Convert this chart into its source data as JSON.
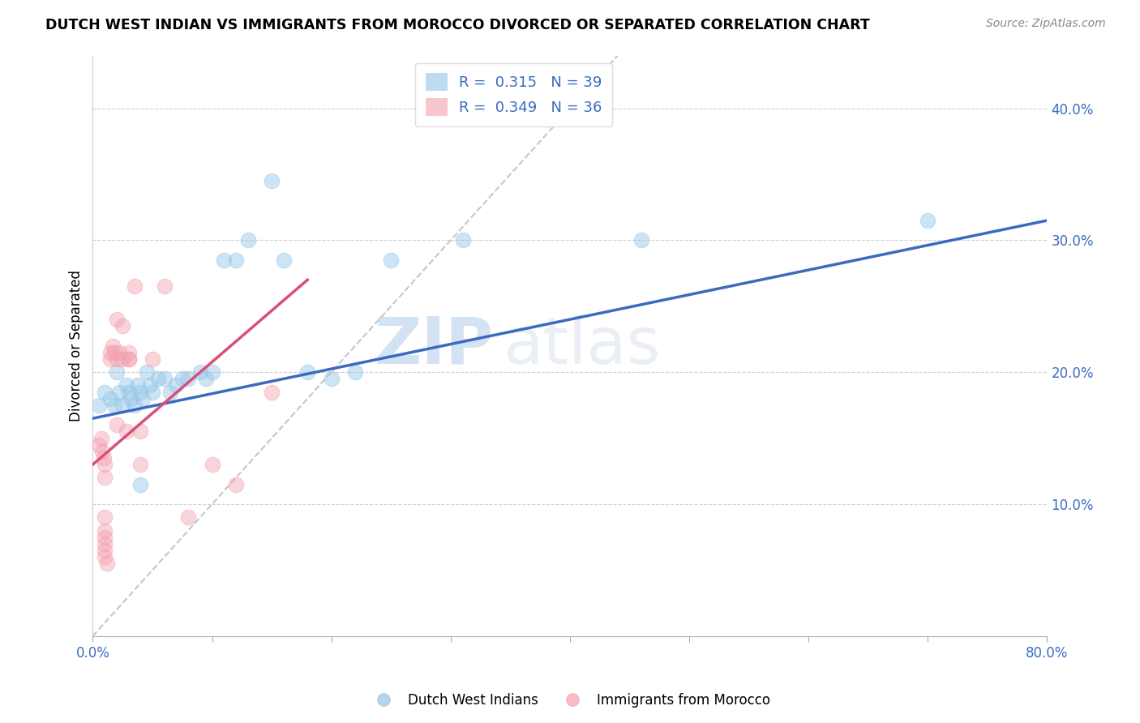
{
  "title": "DUTCH WEST INDIAN VS IMMIGRANTS FROM MOROCCO DIVORCED OR SEPARATED CORRELATION CHART",
  "source": "Source: ZipAtlas.com",
  "ylabel": "Divorced or Separated",
  "xlim": [
    0.0,
    0.8
  ],
  "ylim": [
    0.0,
    0.44
  ],
  "xtick_vals": [
    0.0,
    0.1,
    0.2,
    0.3,
    0.4,
    0.5,
    0.6,
    0.7,
    0.8
  ],
  "xtick_labels": [
    "0.0%",
    "",
    "",
    "",
    "",
    "",
    "",
    "",
    "80.0%"
  ],
  "ytick_vals": [
    0.1,
    0.2,
    0.3,
    0.4
  ],
  "ytick_labels": [
    "10.0%",
    "20.0%",
    "30.0%",
    "40.0%"
  ],
  "legend1_R": "0.315",
  "legend1_N": "39",
  "legend2_R": "0.349",
  "legend2_N": "36",
  "blue_color": "#92c5e8",
  "pink_color": "#f4a0b0",
  "trendline_blue": "#3a6bbf",
  "trendline_pink": "#d94f7a",
  "trendline_gray": "#c0c0c0",
  "watermark_zip": "ZIP",
  "watermark_atlas": "atlas",
  "blue_scatter_x": [
    0.005,
    0.01,
    0.015,
    0.018,
    0.02,
    0.022,
    0.025,
    0.028,
    0.03,
    0.032,
    0.035,
    0.038,
    0.04,
    0.042,
    0.045,
    0.048,
    0.05,
    0.055,
    0.06,
    0.065,
    0.07,
    0.075,
    0.08,
    0.09,
    0.095,
    0.1,
    0.11,
    0.12,
    0.13,
    0.15,
    0.16,
    0.18,
    0.2,
    0.22,
    0.25,
    0.31,
    0.46,
    0.7,
    0.04
  ],
  "blue_scatter_y": [
    0.175,
    0.185,
    0.18,
    0.175,
    0.2,
    0.185,
    0.175,
    0.19,
    0.185,
    0.18,
    0.175,
    0.19,
    0.185,
    0.18,
    0.2,
    0.19,
    0.185,
    0.195,
    0.195,
    0.185,
    0.19,
    0.195,
    0.195,
    0.2,
    0.195,
    0.2,
    0.285,
    0.285,
    0.3,
    0.345,
    0.285,
    0.2,
    0.195,
    0.2,
    0.285,
    0.3,
    0.3,
    0.315,
    0.115
  ],
  "pink_scatter_x": [
    0.005,
    0.007,
    0.008,
    0.009,
    0.01,
    0.01,
    0.01,
    0.01,
    0.01,
    0.01,
    0.01,
    0.01,
    0.012,
    0.015,
    0.015,
    0.017,
    0.018,
    0.02,
    0.02,
    0.022,
    0.025,
    0.028,
    0.03,
    0.03,
    0.03,
    0.035,
    0.04,
    0.05,
    0.06,
    0.08,
    0.1,
    0.12,
    0.15,
    0.02,
    0.025,
    0.04
  ],
  "pink_scatter_y": [
    0.145,
    0.15,
    0.14,
    0.135,
    0.13,
    0.12,
    0.09,
    0.08,
    0.075,
    0.07,
    0.065,
    0.06,
    0.055,
    0.21,
    0.215,
    0.22,
    0.215,
    0.21,
    0.16,
    0.215,
    0.21,
    0.155,
    0.21,
    0.215,
    0.21,
    0.265,
    0.155,
    0.21,
    0.265,
    0.09,
    0.13,
    0.115,
    0.185,
    0.24,
    0.235,
    0.13
  ],
  "blue_trend_x": [
    0.0,
    0.8
  ],
  "blue_trend_y": [
    0.165,
    0.315
  ],
  "pink_trend_x": [
    0.0,
    0.18
  ],
  "pink_trend_y": [
    0.13,
    0.27
  ],
  "gray_trend_x": [
    0.0,
    0.44
  ],
  "gray_trend_y": [
    0.0,
    0.44
  ]
}
